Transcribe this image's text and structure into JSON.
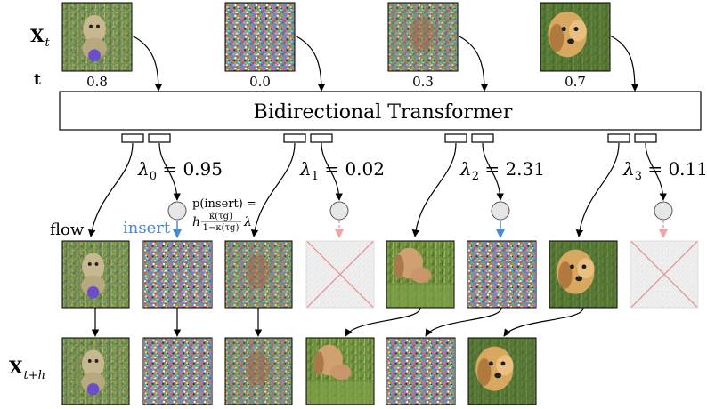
{
  "labels": {
    "row_top": "X",
    "row_top_sub": "t",
    "row_t": "t",
    "row_bottom": "X",
    "row_bottom_sub": "t+h",
    "flow": "flow",
    "insert": "insert"
  },
  "transformer": {
    "label": "Bidirectional Transformer"
  },
  "times": [
    "0.8",
    "0.0",
    "0.3",
    "0.7"
  ],
  "lambdas": [
    {
      "sym": "λ",
      "sub": "0",
      "value": " = 0.95"
    },
    {
      "sym": "λ",
      "sub": "1",
      "value": " = 0.02"
    },
    {
      "sym": "λ",
      "sub": "2",
      "value": " = 2.31"
    },
    {
      "sym": "λ",
      "sub": "3",
      "value": " = 0.11"
    }
  ],
  "insert_formula": {
    "line1": "p(insert) =",
    "h": "h",
    "num": "κ̇(τg)",
    "den": "1−κ(τg)",
    "lambda": "λ"
  },
  "colors": {
    "insert_arrow": "#4a8ad4",
    "rejected_arrow": "#f0a4a4",
    "rejected_cross": "#e89a9a",
    "text": "#000000"
  }
}
